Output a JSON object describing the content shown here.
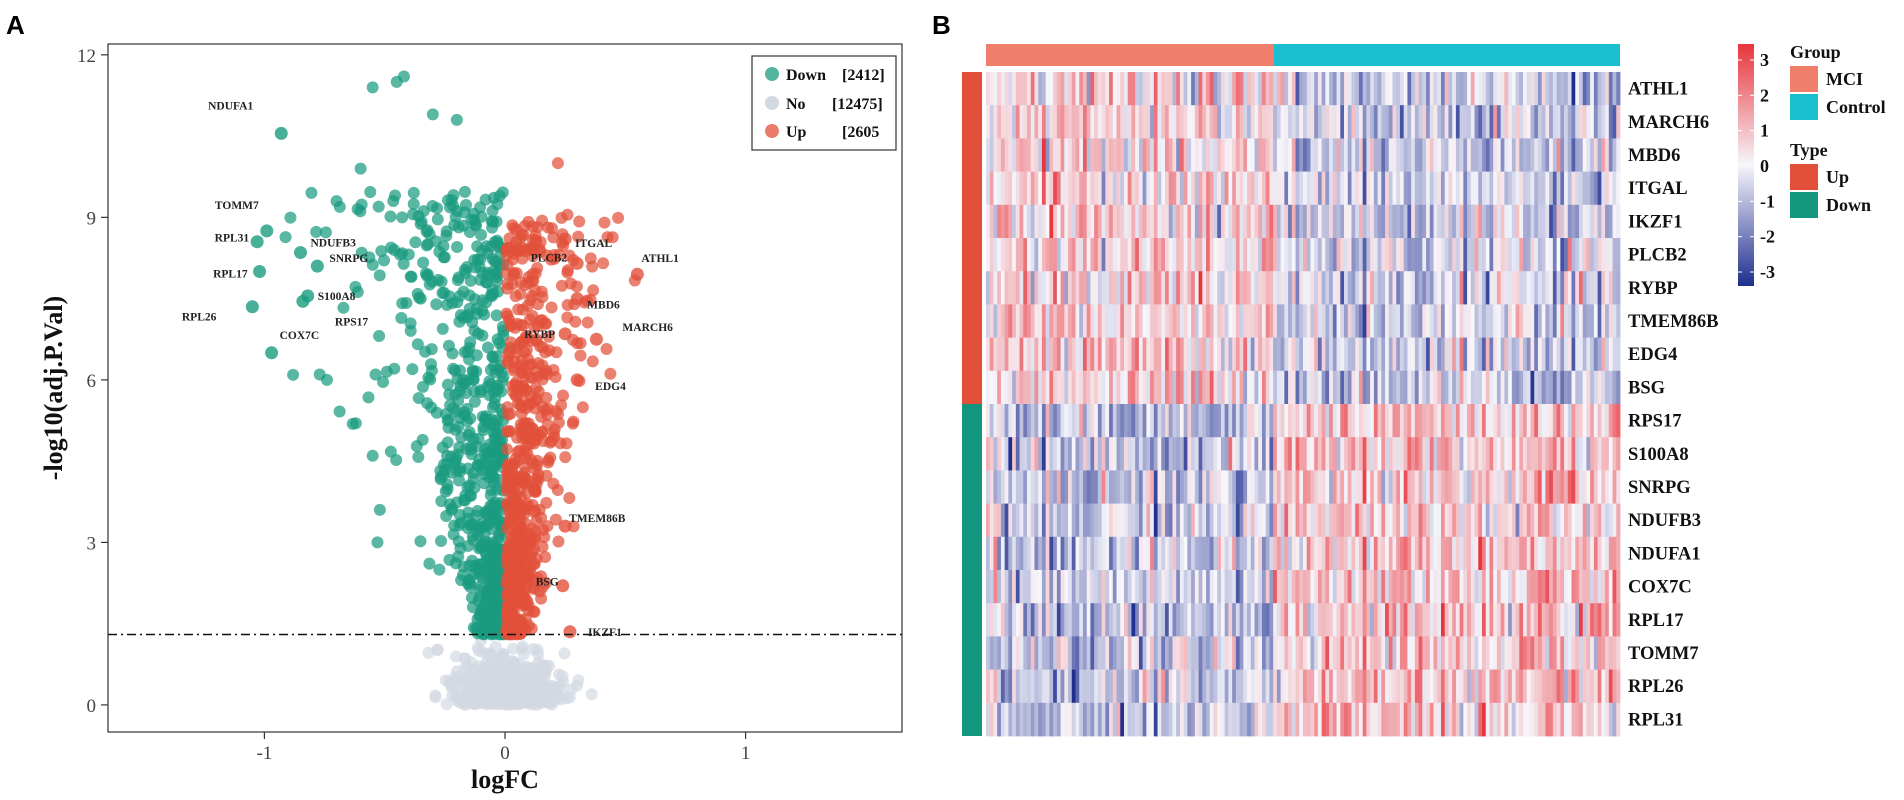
{
  "panels": {
    "a_label": "A",
    "b_label": "B"
  },
  "colors": {
    "down": "#1a9b80",
    "no": "#d3d9e2",
    "up": "#e2503a",
    "mci": "#ef7f6b",
    "control": "#19bfcf",
    "type_up": "#e2503a",
    "type_down": "#12967d",
    "heat_high": "#e8353c",
    "heat_mid": "#f6f6fb",
    "heat_low": "#1f2e8f"
  },
  "chart_data": [
    {
      "type": "scatter",
      "subtype": "volcano",
      "xlabel": "logFC",
      "ylabel": "-log10(adj.P.Val)",
      "xlim": [
        -1.65,
        1.65
      ],
      "ylim": [
        -0.5,
        12.2
      ],
      "x_ticks": [
        {
          "v": -1,
          "label": "-1"
        },
        {
          "v": 0,
          "label": "0"
        },
        {
          "v": 1,
          "label": "1"
        }
      ],
      "y_ticks": [
        {
          "v": 0,
          "label": "0"
        },
        {
          "v": 3,
          "label": "3"
        },
        {
          "v": 6,
          "label": "6"
        },
        {
          "v": 9,
          "label": "9"
        },
        {
          "v": 12,
          "label": "12"
        }
      ],
      "threshold_y": 1.3,
      "legend": [
        {
          "key": "down",
          "name": "Down",
          "count": "[2412]"
        },
        {
          "key": "no",
          "name": "No",
          "count": "[12475]"
        },
        {
          "key": "up",
          "name": "Up",
          "count": "[2605"
        }
      ],
      "labeled_points": [
        {
          "gene": "NDUFA1",
          "x": -0.93,
          "y": 10.55,
          "group": "down"
        },
        {
          "gene": "TOMM7",
          "x": -0.99,
          "y": 8.75,
          "group": "down"
        },
        {
          "gene": "RPL31",
          "x": -1.03,
          "y": 8.55,
          "group": "down"
        },
        {
          "gene": "NDUFB3",
          "x": -0.85,
          "y": 8.35,
          "group": "down"
        },
        {
          "gene": "RPL17",
          "x": -1.02,
          "y": 8.0,
          "group": "down"
        },
        {
          "gene": "SNRPG",
          "x": -0.78,
          "y": 8.1,
          "group": "down"
        },
        {
          "gene": "S100A8",
          "x": -0.82,
          "y": 7.55,
          "group": "down"
        },
        {
          "gene": "RPL26",
          "x": -1.05,
          "y": 7.35,
          "group": "down"
        },
        {
          "gene": "RPS17",
          "x": -0.84,
          "y": 7.45,
          "group": "down"
        },
        {
          "gene": "COX7C",
          "x": -0.97,
          "y": 6.5,
          "group": "down"
        },
        {
          "gene": "ITGAL",
          "x": 0.25,
          "y": 8.6,
          "group": "up"
        },
        {
          "gene": "ATHL1",
          "x": 0.55,
          "y": 7.95,
          "group": "up"
        },
        {
          "gene": "PLCB2",
          "x": 0.3,
          "y": 8.15,
          "group": "up"
        },
        {
          "gene": "MBD6",
          "x": 0.3,
          "y": 7.5,
          "group": "up"
        },
        {
          "gene": "MARCH6",
          "x": 0.38,
          "y": 6.75,
          "group": "up"
        },
        {
          "gene": "RYBP",
          "x": 0.25,
          "y": 6.85,
          "group": "up"
        },
        {
          "gene": "EDG4",
          "x": 0.3,
          "y": 6.0,
          "group": "up"
        },
        {
          "gene": "TMEM86B",
          "x": 0.25,
          "y": 3.3,
          "group": "up"
        },
        {
          "gene": "BSG",
          "x": 0.24,
          "y": 2.2,
          "group": "up"
        },
        {
          "gene": "IKZF1",
          "x": 0.27,
          "y": 1.35,
          "group": "up"
        }
      ]
    },
    {
      "type": "heatmap",
      "rows": [
        "ATHL1",
        "MARCH6",
        "MBD6",
        "ITGAL",
        "IKZF1",
        "PLCB2",
        "RYBP",
        "TMEM86B",
        "EDG4",
        "BSG",
        "RPS17",
        "S100A8",
        "SNRPG",
        "NDUFB3",
        "NDUFA1",
        "COX7C",
        "RPL17",
        "TOMM7",
        "RPL26",
        "RPL31"
      ],
      "row_types": [
        "Up",
        "Up",
        "Up",
        "Up",
        "Up",
        "Up",
        "Up",
        "Up",
        "Up",
        "Up",
        "Down",
        "Down",
        "Down",
        "Down",
        "Down",
        "Down",
        "Down",
        "Down",
        "Down",
        "Down"
      ],
      "column_groups": [
        {
          "name": "MCI",
          "fraction": 0.45
        },
        {
          "name": "Control",
          "fraction": 0.55
        }
      ],
      "color_scale": {
        "min": -3,
        "max": 3,
        "ticks": [
          3,
          2,
          1,
          0,
          -1,
          -2,
          -3
        ]
      },
      "legend": {
        "group_title": "Group",
        "group_items": [
          "MCI",
          "Control"
        ],
        "type_title": "Type",
        "type_items": [
          "Up",
          "Down"
        ]
      }
    }
  ]
}
